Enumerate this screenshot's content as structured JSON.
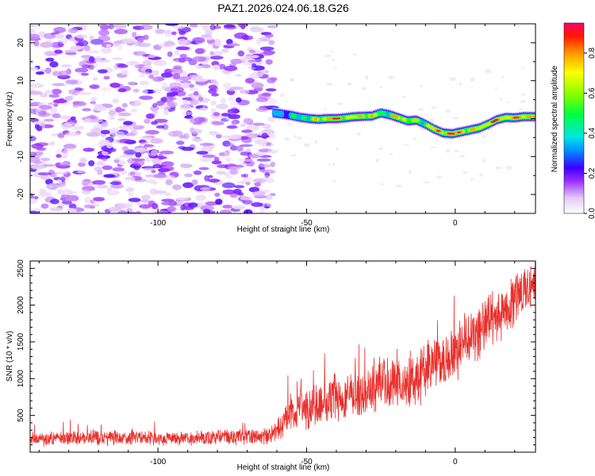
{
  "page_title": "PAZ1.2026.024.06.18.G26",
  "chart_data": [
    {
      "type": "heatmap",
      "title": "PAZ1.2026.024.06.18.G26",
      "xlabel": "Height of straight line (km)",
      "ylabel": "Frequency (Hz)",
      "xlim": [
        -143,
        27
      ],
      "ylim": [
        -25,
        25
      ],
      "x_ticks": [
        -100,
        -50,
        0
      ],
      "y_ticks": [
        -20,
        -10,
        0,
        10,
        20
      ],
      "noise_region_x": [
        -143,
        -61
      ],
      "noise_amplitude_range": [
        0.05,
        0.22
      ],
      "signal_ridge": {
        "x": [
          -61,
          -58,
          -55,
          -52,
          -49,
          -46,
          -43,
          -40,
          -37,
          -34,
          -31,
          -28,
          -25,
          -22,
          -19,
          -16,
          -13,
          -10,
          -7,
          -4,
          -1,
          2,
          5,
          8,
          11,
          14,
          17,
          20,
          23,
          27
        ],
        "freq": [
          1.5,
          1.2,
          0.8,
          0.3,
          0.0,
          -0.2,
          0.0,
          0.0,
          0.2,
          0.5,
          0.6,
          0.7,
          1.5,
          1.0,
          0.2,
          -0.6,
          -0.4,
          -1.5,
          -2.8,
          -3.8,
          -4.0,
          -3.5,
          -3.0,
          -2.5,
          -1.5,
          -0.3,
          0.3,
          0.2,
          0.5,
          0.5
        ],
        "amplitude": [
          0.35,
          0.32,
          0.38,
          0.45,
          0.55,
          0.62,
          0.8,
          0.88,
          0.72,
          0.6,
          0.82,
          0.65,
          0.55,
          0.6,
          0.75,
          0.62,
          0.55,
          0.58,
          0.7,
          0.88,
          0.9,
          0.8,
          0.68,
          0.66,
          0.84,
          0.92,
          0.72,
          0.86,
          0.82,
          0.78
        ],
        "width_hz": 1.0
      },
      "colorbar": {
        "label": "Normalized spectral amplitude",
        "range": [
          0.0,
          0.95
        ],
        "ticks": [
          0.0,
          0.2,
          0.4,
          0.6,
          0.8
        ],
        "tick_labels": [
          "0.0",
          "0.2",
          "0.4",
          "0.6",
          "0.8"
        ]
      }
    },
    {
      "type": "line",
      "title": "",
      "xlabel": "Height of straight line (km)",
      "ylabel": "SNR (10 * v/v)",
      "xlim": [
        -143,
        27
      ],
      "ylim": [
        0,
        2600
      ],
      "x_ticks": [
        -100,
        -50,
        0
      ],
      "y_ticks": [
        500,
        1000,
        1500,
        2000,
        2500
      ],
      "color": "#e8302c",
      "series": [
        {
          "name": "SNR",
          "x": [
            -143,
            -120,
            -100,
            -80,
            -70,
            -62,
            -58,
            -55,
            -52,
            -50,
            -45,
            -40,
            -35,
            -30,
            -25,
            -22,
            -20,
            -18,
            -15,
            -12,
            -10,
            -7,
            -5,
            -3,
            0,
            3,
            6,
            9,
            12,
            15,
            18,
            21,
            24,
            27
          ],
          "mean": [
            180,
            200,
            190,
            200,
            205,
            220,
            380,
            580,
            600,
            560,
            660,
            780,
            720,
            800,
            1000,
            900,
            980,
            900,
            920,
            1000,
            1120,
            1240,
            1200,
            1180,
            1350,
            1500,
            1620,
            1700,
            1780,
            1880,
            2000,
            2100,
            2200,
            2350
          ],
          "noise": [
            90,
            100,
            95,
            100,
            100,
            110,
            200,
            260,
            280,
            260,
            290,
            330,
            300,
            320,
            380,
            340,
            360,
            330,
            330,
            360,
            380,
            380,
            360,
            350,
            370,
            380,
            380,
            380,
            380,
            360,
            350,
            340,
            320,
            300
          ]
        }
      ]
    }
  ]
}
